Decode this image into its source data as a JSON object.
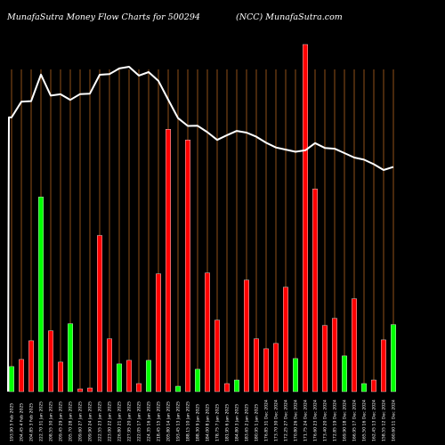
{
  "header": {
    "left": "MunafaSutra  Money Flow  Charts for 500294",
    "right": "(NCC) MunafaSutra.com"
  },
  "chart_data": {
    "type": "bar+line",
    "bars": {
      "up_color": "#00ff00",
      "down_color": "#ff0000",
      "series": [
        {
          "label": "193.90  5 Feb 2025",
          "volume": 28,
          "dir": "up"
        },
        {
          "label": "204.45  4 Feb 2025",
          "volume": 36,
          "dir": "down"
        },
        {
          "label": "204.85  3 Feb 2025",
          "volume": 57,
          "dir": "down"
        },
        {
          "label": "222.70 31 Jan 2025",
          "volume": 218,
          "dir": "up"
        },
        {
          "label": "208.55 30 Jan 2025",
          "volume": 68,
          "dir": "down"
        },
        {
          "label": "209.45 29 Jan 2025",
          "volume": 33,
          "dir": "down"
        },
        {
          "label": "205.70 28 Jan 2025",
          "volume": 76,
          "dir": "up"
        },
        {
          "label": "209.60 27 Jan 2025",
          "volume": 3,
          "dir": "down"
        },
        {
          "label": "209.90 24 Jan 2025",
          "volume": 4,
          "dir": "down"
        },
        {
          "label": "222.55 23 Jan 2025",
          "volume": 175,
          "dir": "down"
        },
        {
          "label": "223.00 22 Jan 2025",
          "volume": 59,
          "dir": "down"
        },
        {
          "label": "226.80 21 Jan 2025",
          "volume": 31,
          "dir": "up"
        },
        {
          "label": "227.95 20 Jan 2025",
          "volume": 35,
          "dir": "down"
        },
        {
          "label": "222.05 17 Jan 2025",
          "volume": 9,
          "dir": "down"
        },
        {
          "label": "224.35 16 Jan 2025",
          "volume": 35,
          "dir": "up"
        },
        {
          "label": "218.45 15 Jan 2025",
          "volume": 132,
          "dir": "down"
        },
        {
          "label": "205.80 14 Jan 2025",
          "volume": 294,
          "dir": "down"
        },
        {
          "label": "193.45 13 Jan 2025",
          "volume": 6,
          "dir": "up"
        },
        {
          "label": "188.15 10 Jan 2025",
          "volume": 282,
          "dir": "down"
        },
        {
          "label": "188.30  9 Jan 2025",
          "volume": 25,
          "dir": "up"
        },
        {
          "label": "184.00  8 Jan 2025",
          "volume": 133,
          "dir": "down"
        },
        {
          "label": "178.75  7 Jan 2025",
          "volume": 80,
          "dir": "down"
        },
        {
          "label": "181.95  6 Jan 2025",
          "volume": 9,
          "dir": "down"
        },
        {
          "label": "184.80  3 Jan 2025",
          "volume": 13,
          "dir": "up"
        },
        {
          "label": "183.65  2 Jan 2025",
          "volume": 125,
          "dir": "down"
        },
        {
          "label": "180.95  1 Jan 2025",
          "volume": 59,
          "dir": "down"
        },
        {
          "label": "176.85 31 Dec 2024",
          "volume": 48,
          "dir": "down"
        },
        {
          "label": "173.70 30 Dec 2024",
          "volume": 54,
          "dir": "down"
        },
        {
          "label": "172.25 27 Dec 2024",
          "volume": 117,
          "dir": "down"
        },
        {
          "label": "170.80 26 Dec 2024",
          "volume": 37,
          "dir": "up"
        },
        {
          "label": "171.75 24 Dec 2024",
          "volume": 389,
          "dir": "down"
        },
        {
          "label": "176.60 23 Dec 2024",
          "volume": 227,
          "dir": "down"
        },
        {
          "label": "173.40 20 Dec 2024",
          "volume": 74,
          "dir": "down"
        },
        {
          "label": "172.85 19 Dec 2024",
          "volume": 82,
          "dir": "down"
        },
        {
          "label": "169.90 18 Dec 2024",
          "volume": 40,
          "dir": "up"
        },
        {
          "label": "166.95 17 Dec 2024",
          "volume": 104,
          "dir": "down"
        },
        {
          "label": "165.50 16 Dec 2024",
          "volume": 9,
          "dir": "up"
        },
        {
          "label": "162.45 13 Dec 2024",
          "volume": 13,
          "dir": "down"
        },
        {
          "label": "158.55 12 Dec 2024",
          "volume": 58,
          "dir": "down"
        },
        {
          "label": "160.60 11 Dec 2024",
          "volume": 75,
          "dir": "up"
        }
      ]
    },
    "line": {
      "color": "#ffffff",
      "values": [
        193.9,
        204.45,
        204.85,
        222.7,
        208.55,
        209.45,
        205.7,
        209.6,
        209.9,
        222.55,
        223.0,
        226.8,
        227.95,
        222.05,
        224.35,
        218.45,
        205.8,
        193.45,
        188.15,
        188.3,
        184.0,
        178.75,
        181.95,
        184.8,
        183.65,
        180.95,
        176.85,
        173.7,
        172.25,
        170.8,
        171.75,
        176.6,
        173.4,
        172.85,
        169.9,
        166.95,
        165.5,
        162.45,
        158.55,
        160.6
      ]
    },
    "grid_color": "#b5651d"
  }
}
